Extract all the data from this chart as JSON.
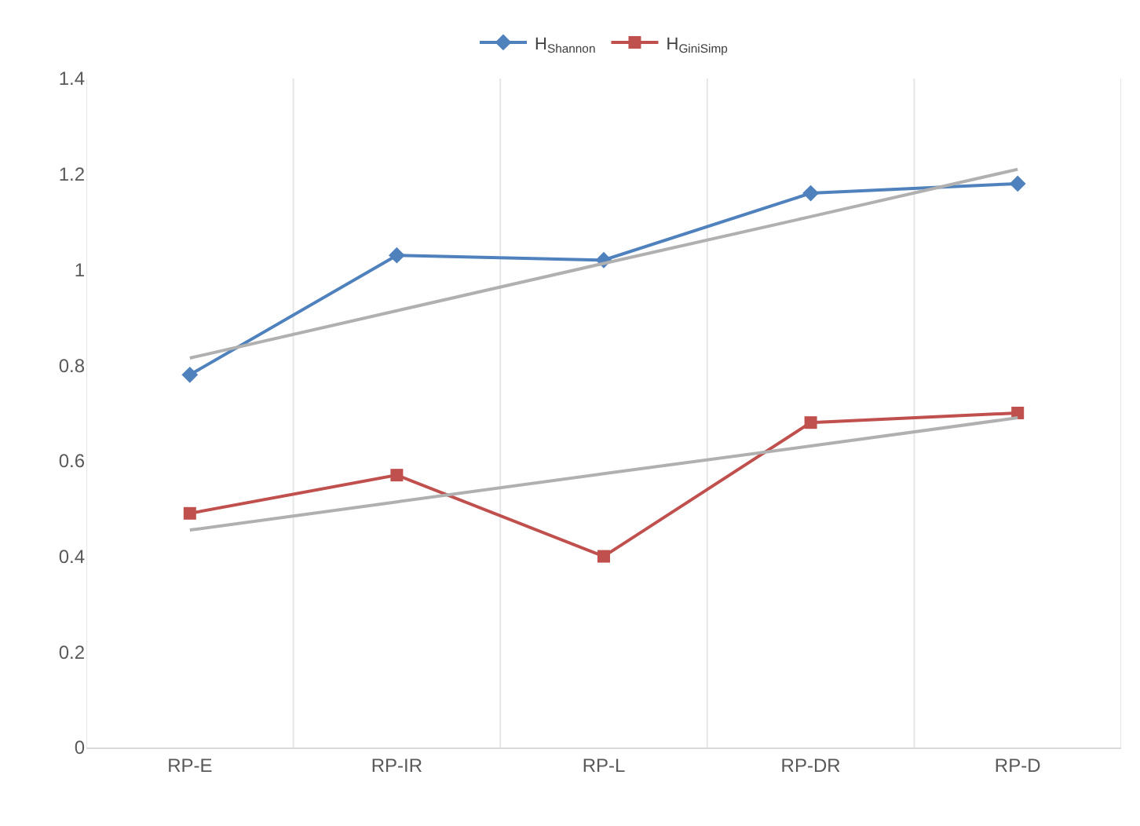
{
  "chart_data": {
    "type": "line",
    "categories": [
      "RP-E",
      "RP-IR",
      "RP-L",
      "RP-DR",
      "RP-D"
    ],
    "series": [
      {
        "name": "H$_{Shannon}$",
        "color": "#4f81bd",
        "marker": "diamond",
        "values": [
          0.78,
          1.03,
          1.02,
          1.16,
          1.18
        ]
      },
      {
        "name": "H$_{GiniSimp}$",
        "color": "#c0504d",
        "marker": "square",
        "values": [
          0.49,
          0.57,
          0.4,
          0.68,
          0.7
        ]
      },
      {
        "color": "#b0b0b0",
        "marker": "none",
        "values": [
          0.815,
          0.914,
          1.013,
          1.111,
          1.21
        ]
      },
      {
        "color": "#b0b0b0",
        "marker": "none",
        "values": [
          0.455,
          0.514,
          0.573,
          0.631,
          0.69
        ]
      }
    ],
    "ylim": [
      0,
      1.4
    ],
    "yticks": [
      0,
      0.2,
      0.4,
      0.6,
      0.8,
      1,
      1.2,
      1.4
    ],
    "grid": "x",
    "legend": "top",
    "line_style": "solid"
  }
}
